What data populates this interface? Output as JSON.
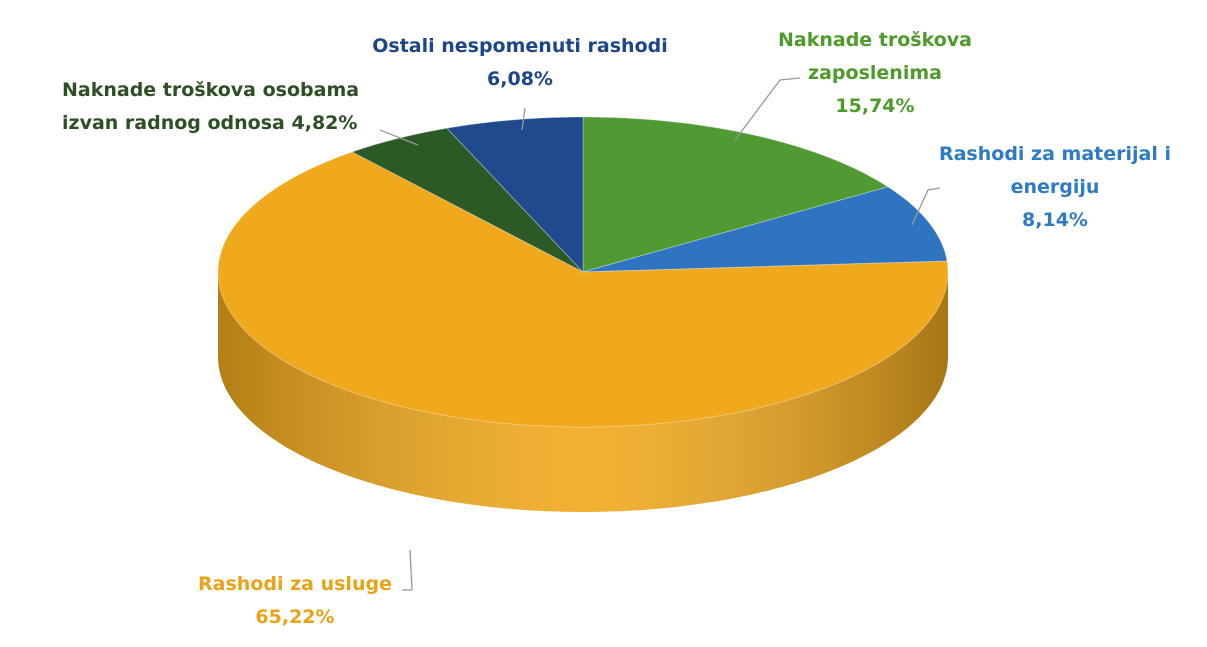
{
  "chart_data": {
    "type": "pie",
    "categories": [
      "Naknade troškova zaposlenima",
      "Rashodi za materijal i energiju",
      "Rashodi za usluge",
      "Naknade troškova osobama izvan radnog odnosa",
      "Ostali nespomenuti rashodi"
    ],
    "values": [
      15.74,
      8.14,
      65.22,
      4.82,
      6.08
    ],
    "value_labels": [
      "15,74%",
      "8,14%",
      "65,22%",
      "4,82%",
      "6,08%"
    ],
    "colors": [
      "#4f9a33",
      "#2f74c0",
      "#f0a81c",
      "#2c5a26",
      "#1f4a8e"
    ],
    "label_colors": [
      "#4e9a2a",
      "#2e7bc4",
      "#e8a317",
      "#2d4f24",
      "#1d4688"
    ]
  }
}
